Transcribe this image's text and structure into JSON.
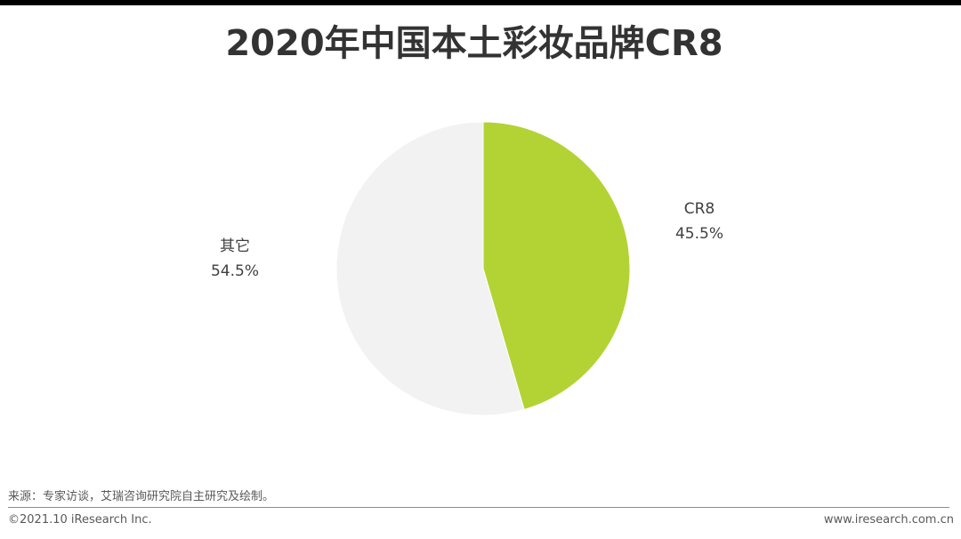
{
  "title": "2020年中国本土彩妆品牌CR8",
  "source": "来源：专家访谈，艾瑞咨询研究院自主研究及绘制。",
  "footer": {
    "copyright": "©2021.10 iResearch Inc.",
    "website": "www.iresearch.com.cn"
  },
  "chart_data": {
    "type": "pie",
    "title": "2020年中国本土彩妆品牌CR8",
    "slices": [
      {
        "label": "CR8",
        "value": 45.5,
        "display": "45.5%",
        "color": "#b3d334"
      },
      {
        "label": "其它",
        "value": 54.5,
        "display": "54.5%",
        "color": "#f2f2f2"
      }
    ],
    "start_angle": "12 o'clock",
    "direction": "clockwise",
    "legend": "none (labels beside slices)"
  }
}
